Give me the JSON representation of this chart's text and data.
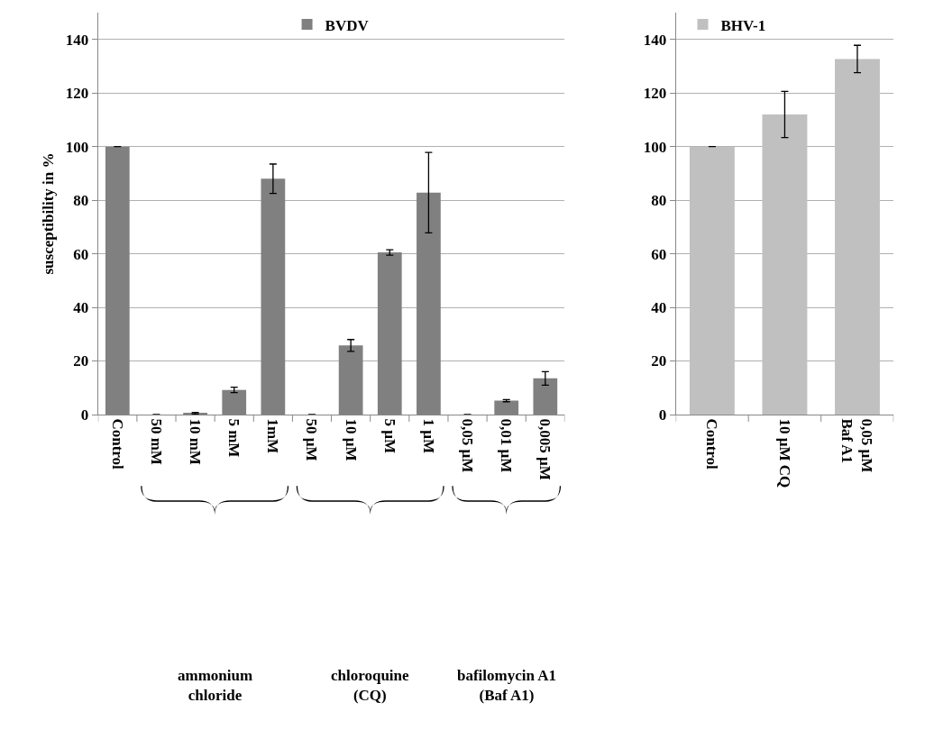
{
  "chart_data": [
    {
      "type": "bar",
      "ylabel": "susceptibility in %",
      "categories": [
        "Control",
        "50 mM",
        "10 mM",
        "5 mM",
        "1mM",
        "50 µM",
        "10 µM",
        "5 µM",
        "1 µM",
        "0,05 µM",
        "0,01 µM",
        "0,005 µM"
      ],
      "series": [
        {
          "name": "BVDV",
          "color": "#808080",
          "values": [
            100,
            0,
            0.5,
            9.2,
            88,
            0,
            25.8,
            60.5,
            82.8,
            0,
            5.2,
            13.5
          ],
          "errors": [
            null,
            null,
            0.3,
            1,
            5.5,
            null,
            2.2,
            1,
            15,
            null,
            0.4,
            2.5
          ]
        }
      ],
      "ylim": [
        0,
        150
      ],
      "yticks": [
        0,
        20,
        40,
        60,
        80,
        100,
        120,
        140
      ],
      "grid": "y",
      "legend": "top",
      "annotations": [
        "ammonium\nchloride",
        "chloroquine\n(CQ)",
        "bafilomycin A1\n(Baf A1)"
      ]
    },
    {
      "type": "bar",
      "categories": [
        "Control",
        "10 µM CQ",
        "0,05 µM\nBaf A1"
      ],
      "series": [
        {
          "name": "BHV-1",
          "color": "#c0c0c0",
          "values": [
            100,
            112,
            132.7
          ],
          "errors": [
            null,
            8.6,
            5.1
          ]
        }
      ],
      "ylim": [
        0,
        150
      ],
      "yticks": [
        0,
        20,
        40,
        60,
        80,
        100,
        120,
        140
      ],
      "grid": "y",
      "legend": "top"
    }
  ]
}
